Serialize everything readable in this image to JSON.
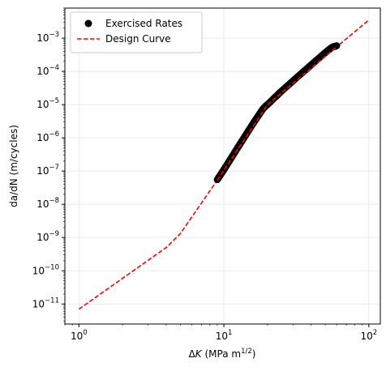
{
  "chart_data": {
    "type": "line",
    "title": "",
    "xlabel": "ΔK (MPa m1/2)",
    "xlabel_parts": {
      "symbol": "Δ",
      "var": "K",
      "unit": " (MPa m",
      "exp": "1/2",
      "close": ")"
    },
    "ylabel": "da/dN (m/cycles)",
    "xscale": "log",
    "yscale": "log",
    "xlim": [
      0.8,
      120
    ],
    "ylim": [
      2.5e-12,
      0.008
    ],
    "grid": true,
    "legend_position": "top-left",
    "x_ticks": [
      {
        "value": 1,
        "base": "10",
        "exp": "0"
      },
      {
        "value": 10,
        "base": "10",
        "exp": "1"
      },
      {
        "value": 100,
        "base": "10",
        "exp": "2"
      }
    ],
    "y_ticks": [
      {
        "value": 1e-11,
        "base": "10",
        "exp": "−11"
      },
      {
        "value": 1e-10,
        "base": "10",
        "exp": "−10"
      },
      {
        "value": 1e-09,
        "base": "10",
        "exp": "−9"
      },
      {
        "value": 1e-08,
        "base": "10",
        "exp": "−8"
      },
      {
        "value": 1e-07,
        "base": "10",
        "exp": "−7"
      },
      {
        "value": 1e-06,
        "base": "10",
        "exp": "−6"
      },
      {
        "value": 1e-05,
        "base": "10",
        "exp": "−5"
      },
      {
        "value": 0.0001,
        "base": "10",
        "exp": "−4"
      },
      {
        "value": 0.001,
        "base": "10",
        "exp": "−3"
      }
    ],
    "series": [
      {
        "name": "Exercised Rates",
        "kind": "scatter",
        "color": "#000000",
        "x": [
          9,
          9.4,
          9.8,
          10.2,
          10.6,
          11,
          11.5,
          12,
          12.5,
          13,
          13.6,
          14.2,
          14.8,
          15.5,
          16.2,
          17,
          17.8,
          18.6,
          19.5,
          20,
          21,
          22,
          23,
          24,
          25,
          26.5,
          28,
          29.5,
          31,
          33,
          35,
          37,
          39,
          41.5,
          44,
          47,
          50,
          53,
          56,
          58,
          60
        ],
        "y": [
          5.5e-08,
          7.3e-08,
          9.6e-08,
          1.26e-07,
          1.65e-07,
          2.13e-07,
          2.9e-07,
          3.9e-07,
          5.2e-07,
          6.8e-07,
          9.2e-07,
          1.24e-06,
          1.65e-06,
          2.25e-06,
          3.05e-06,
          4.15e-06,
          5.6e-06,
          7.4e-06,
          9.2e-06,
          1e-05,
          1.23e-05,
          1.5e-05,
          1.8e-05,
          2.15e-05,
          2.55e-05,
          3.2e-05,
          3.95e-05,
          4.85e-05,
          5.9e-05,
          7.5e-05,
          9.4e-05,
          0.000116,
          0.000142,
          0.00018,
          0.000225,
          0.00029,
          0.000365,
          0.00045,
          0.00054,
          0.00056,
          0.00059
        ]
      },
      {
        "name": "Design Curve",
        "kind": "line",
        "dash": "dashed",
        "color": "#ff0000",
        "x": [
          1,
          4,
          5,
          9,
          20,
          100
        ],
        "y": [
          7e-12,
          5e-10,
          1.3e-09,
          5.3e-08,
          1e-05,
          0.0035
        ]
      }
    ]
  }
}
